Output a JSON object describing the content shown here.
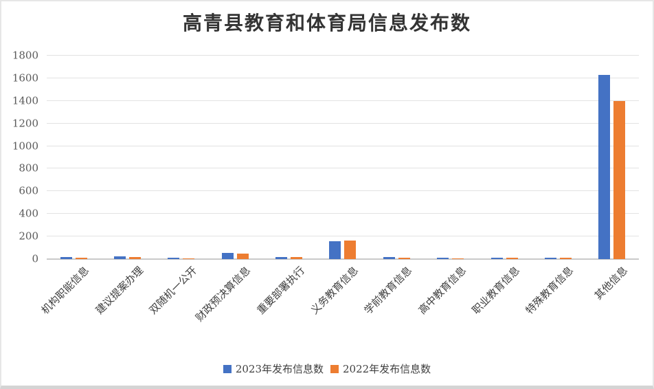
{
  "chart_data": {
    "type": "bar",
    "title": "高青县教育和体育局信息发布数",
    "categories": [
      "机构职能信息",
      "建议提案办理",
      "双随机一公开",
      "财政预决算信息",
      "重要部署执行",
      "义务教育信息",
      "学前教育信息",
      "高中教育信息",
      "职业教育信息",
      "特殊教育信息",
      "其他信息"
    ],
    "series": [
      {
        "name": "2023年发布信息数",
        "color": "#4472C4",
        "values": [
          20,
          22,
          12,
          53,
          21,
          160,
          21,
          13,
          15,
          13,
          1630
        ]
      },
      {
        "name": "2022年发布信息数",
        "color": "#ED7D31",
        "values": [
          12,
          18,
          9,
          49,
          18,
          163,
          10,
          9,
          13,
          11,
          1400
        ]
      }
    ],
    "xlabel": "",
    "ylabel": "",
    "ylim": [
      0,
      1800
    ],
    "yticks": [
      0,
      200,
      400,
      600,
      800,
      1000,
      1200,
      1400,
      1600,
      1800
    ],
    "grid": true,
    "legend_position": "bottom",
    "colors": {
      "title": "#333333",
      "tick_label": "#595959",
      "category_label": "#404040",
      "legend_label": "#404040",
      "gridline": "#e2e2e2",
      "axis_line": "#c9c9c9",
      "background": "#ffffff"
    }
  }
}
